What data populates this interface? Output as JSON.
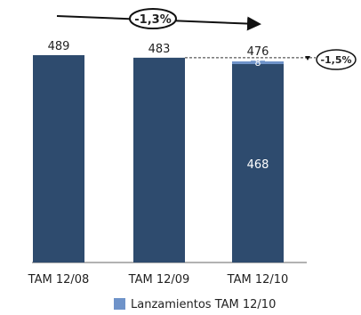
{
  "chart_data": {
    "type": "bar",
    "stacked": true,
    "categories": [
      "TAM 12/08",
      "TAM 12/09",
      "TAM 12/10"
    ],
    "series": [
      {
        "values": [
          489,
          483,
          468
        ],
        "color": "#2e4b6e"
      },
      {
        "name": "Lanzamientos TAM 12/10",
        "values": [
          0,
          0,
          8
        ],
        "color": "#6f93c9"
      }
    ],
    "totals": [
      "489",
      "483",
      "476"
    ],
    "inner_labels": [
      "",
      "",
      "468"
    ],
    "launch_label": "8",
    "ylim": [
      0,
      489
    ],
    "overall_change": "-1,3%",
    "last_change": "-1,5%",
    "legend_label": "Lanzamientos TAM 12/10",
    "legend_position": "bottom"
  }
}
